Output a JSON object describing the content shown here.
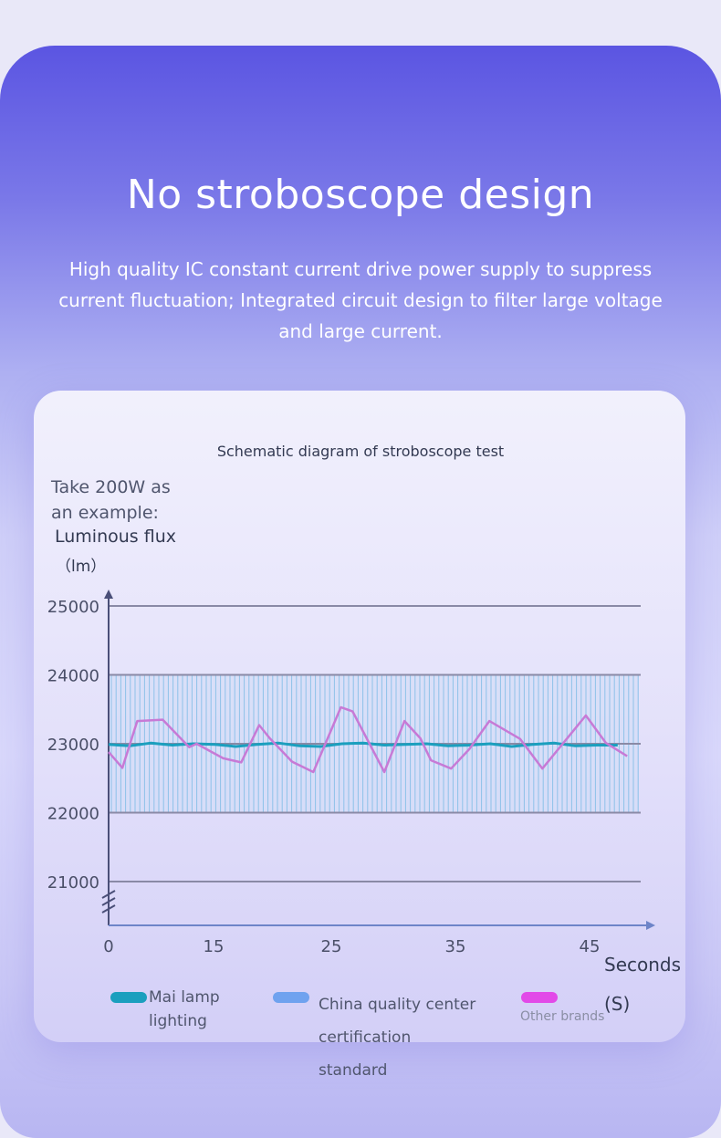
{
  "headline": "No stroboscope design",
  "subtitle": "High quality IC constant current drive power supply to suppress current fluctuation; Integrated circuit design to filter large voltage and large current.",
  "colors": {
    "mai": "#1b9fbe",
    "china": "#6fa2ef",
    "other": "#e24ae8",
    "other_line": "#c77ad6",
    "band_lines": "#6fb6e3",
    "grid": "#8a8aa6",
    "axis": "#4a4f78"
  },
  "legend": [
    {
      "key": "mai",
      "label_lines": [
        "Mai lamp",
        "lighting"
      ]
    },
    {
      "key": "china",
      "label_lines": [
        "China quality center",
        "certification",
        "standard"
      ]
    },
    {
      "key": "other",
      "label_lines": [
        "Other brands"
      ]
    }
  ],
  "chart_data": {
    "type": "line",
    "title": "Schematic diagram of stroboscope test",
    "ylabel_lines": [
      "Take 200W as",
      "an example:",
      "Luminous flux",
      "（lm）"
    ],
    "xlabel_lines": [
      "Seconds",
      "(S)"
    ],
    "x_ticks": [
      0,
      15,
      25,
      35,
      45
    ],
    "y_ticks": [
      21000,
      22000,
      23000,
      24000,
      25000
    ],
    "ylim": [
      20500,
      25000
    ],
    "xlim": [
      0,
      50
    ],
    "band": {
      "name": "China quality center certification standard",
      "y_range": [
        22000,
        24000
      ]
    },
    "series": [
      {
        "key": "mai",
        "name": "Mai lamp lighting",
        "x": [
          0,
          2,
          4,
          6,
          8,
          10,
          12,
          14,
          16,
          18,
          20,
          22,
          24,
          26,
          28,
          30,
          32,
          34,
          36,
          38,
          40,
          42,
          44,
          46,
          48
        ],
        "y": [
          22990,
          22970,
          23010,
          22980,
          23000,
          22990,
          22960,
          22990,
          23010,
          22970,
          22960,
          23000,
          23010,
          22980,
          22990,
          23000,
          22970,
          22980,
          23000,
          22960,
          22990,
          23010,
          22970,
          22980,
          22980
        ]
      },
      {
        "key": "other",
        "name": "Other brands",
        "x": [
          0,
          1.3,
          2.7,
          5.1,
          7.6,
          8.3,
          10.8,
          12.5,
          14.2,
          15.2,
          17.3,
          19.3,
          21.9,
          23.0,
          26.0,
          27.9,
          29.4,
          30.4,
          32.3,
          34.0,
          35.9,
          38.8,
          40.9,
          45.0,
          46.9,
          48.9
        ],
        "y": [
          22880,
          22650,
          23330,
          23350,
          22950,
          23000,
          22790,
          22730,
          23270,
          23080,
          22740,
          22590,
          23530,
          23470,
          22590,
          23330,
          23080,
          22760,
          22640,
          22920,
          23330,
          23070,
          22640,
          23410,
          23010,
          22820
        ]
      }
    ]
  }
}
